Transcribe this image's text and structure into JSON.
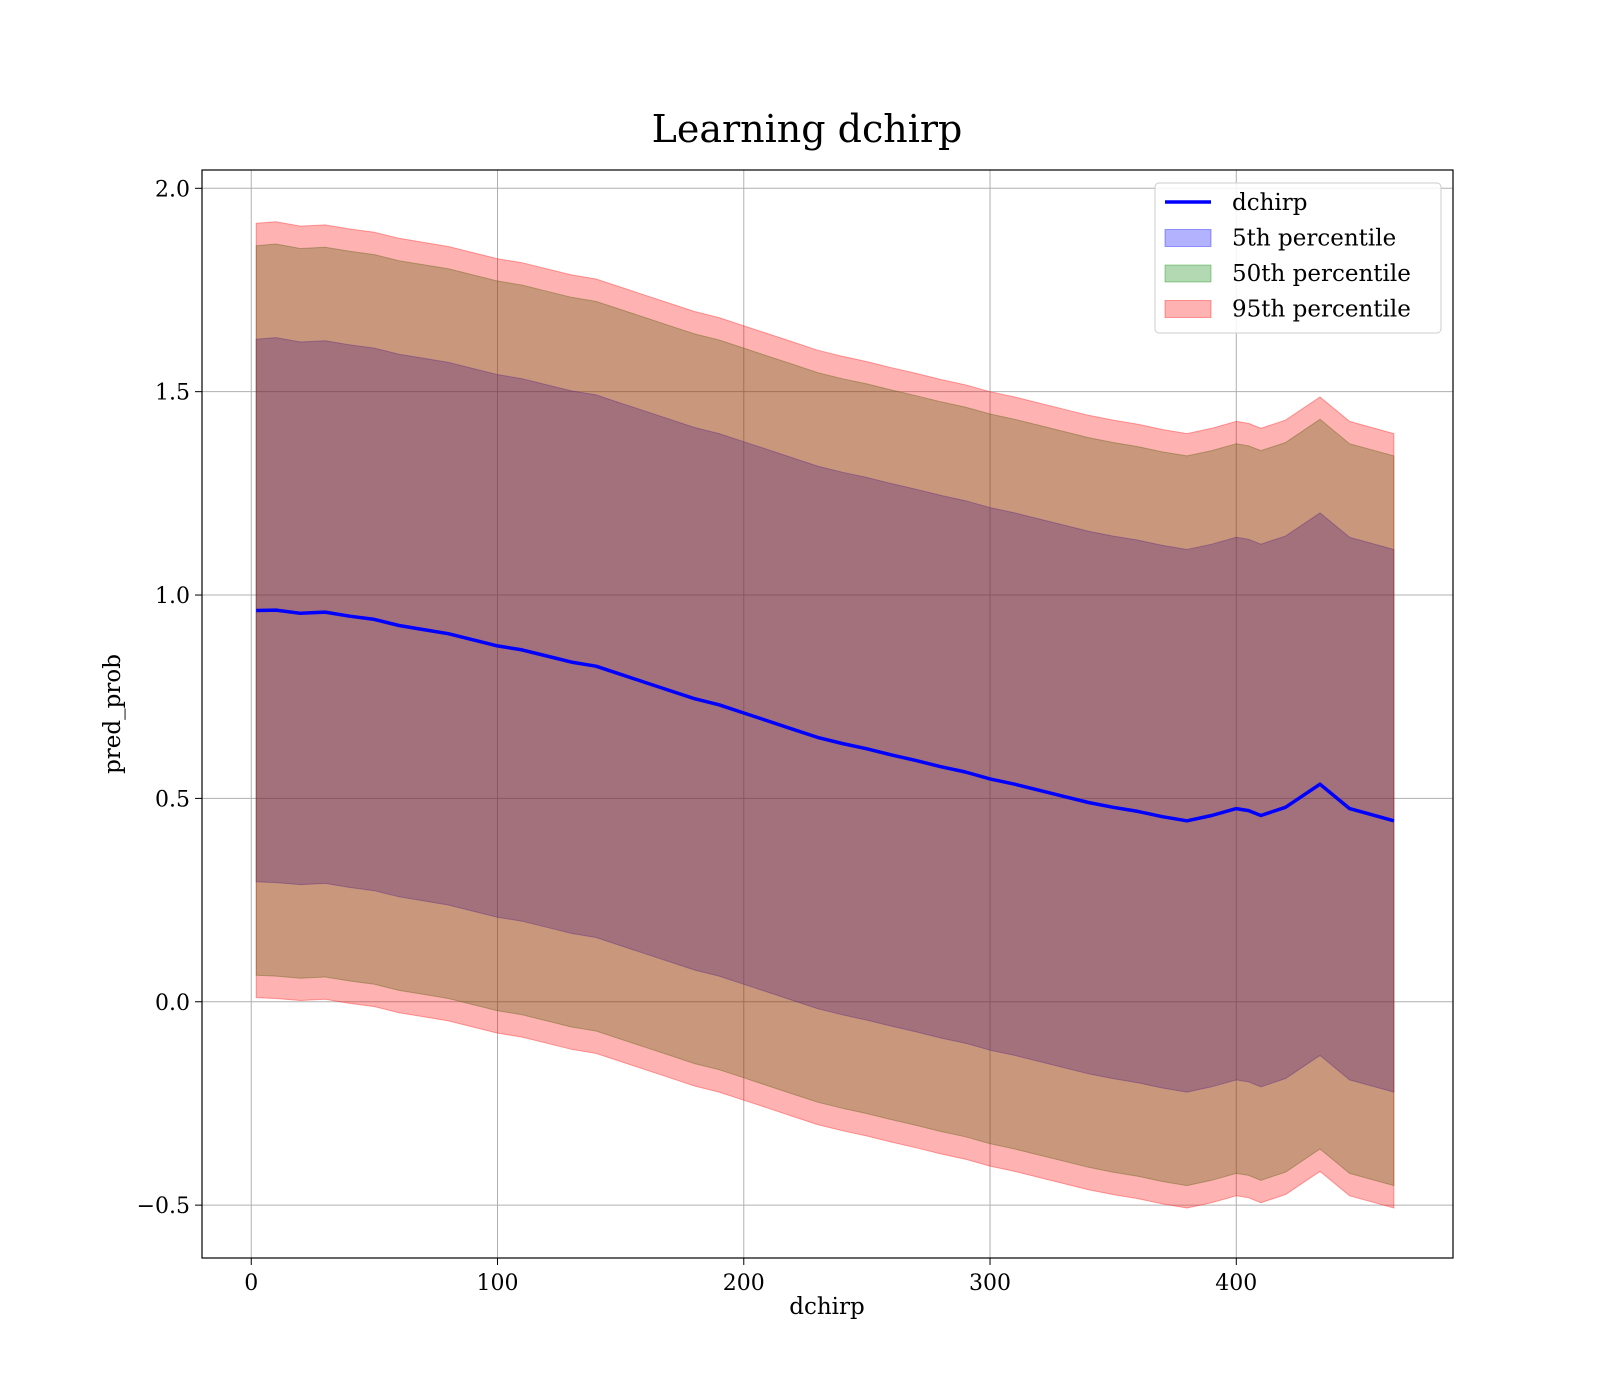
{
  "chart_data": {
    "type": "area",
    "title": "Learning dchirp",
    "xlabel": "dchirp",
    "ylabel": "pred_prob",
    "xlim": [
      -20,
      488
    ],
    "ylim": [
      -0.63,
      2.045
    ],
    "x_ticks": [
      0,
      100,
      200,
      300,
      400
    ],
    "x_tick_labels": [
      "0",
      "100",
      "200",
      "300",
      "400"
    ],
    "y_ticks": [
      -0.5,
      0.0,
      0.5,
      1.0,
      1.5,
      2.0
    ],
    "y_tick_labels": [
      "−0.5",
      "0.0",
      "0.5",
      "1.0",
      "1.5",
      "2.0"
    ],
    "grid": true,
    "legend_position": "top-right",
    "x": [
      2,
      10,
      20,
      30,
      40,
      50,
      60,
      70,
      80,
      90,
      100,
      110,
      120,
      130,
      140,
      150,
      160,
      170,
      180,
      190,
      200,
      210,
      220,
      230,
      240,
      250,
      260,
      270,
      280,
      290,
      300,
      310,
      320,
      330,
      340,
      350,
      360,
      370,
      380,
      390,
      400,
      405,
      410,
      415,
      420,
      434,
      446,
      464
    ],
    "series": [
      {
        "name": "dchirp",
        "kind": "line",
        "color": "#0000ff",
        "values": [
          0.962,
          0.963,
          0.955,
          0.958,
          0.948,
          0.94,
          0.925,
          0.915,
          0.905,
          0.89,
          0.875,
          0.865,
          0.85,
          0.835,
          0.825,
          0.805,
          0.785,
          0.765,
          0.745,
          0.73,
          0.71,
          0.69,
          0.67,
          0.65,
          0.635,
          0.622,
          0.607,
          0.593,
          0.578,
          0.565,
          0.548,
          0.535,
          0.52,
          0.505,
          0.49,
          0.478,
          0.468,
          0.455,
          0.445,
          0.458,
          0.475,
          0.47,
          0.458,
          0.468,
          0.478,
          0.535,
          0.475,
          0.445
        ]
      },
      {
        "name": "5th percentile",
        "kind": "band",
        "color": "#0000ff",
        "lower": [
          0.295,
          0.293,
          0.288,
          0.291,
          0.281,
          0.273,
          0.258,
          0.248,
          0.238,
          0.223,
          0.208,
          0.198,
          0.183,
          0.168,
          0.158,
          0.138,
          0.118,
          0.098,
          0.078,
          0.063,
          0.043,
          0.023,
          0.003,
          -0.017,
          -0.032,
          -0.045,
          -0.06,
          -0.074,
          -0.089,
          -0.102,
          -0.119,
          -0.132,
          -0.147,
          -0.162,
          -0.177,
          -0.189,
          -0.199,
          -0.212,
          -0.222,
          -0.209,
          -0.192,
          -0.197,
          -0.209,
          -0.199,
          -0.189,
          -0.132,
          -0.192,
          -0.222
        ],
        "upper": [
          1.629,
          1.633,
          1.622,
          1.625,
          1.615,
          1.607,
          1.592,
          1.582,
          1.572,
          1.557,
          1.542,
          1.532,
          1.517,
          1.502,
          1.492,
          1.472,
          1.452,
          1.432,
          1.412,
          1.397,
          1.377,
          1.357,
          1.337,
          1.317,
          1.302,
          1.289,
          1.274,
          1.26,
          1.245,
          1.232,
          1.215,
          1.202,
          1.187,
          1.172,
          1.157,
          1.145,
          1.135,
          1.122,
          1.112,
          1.125,
          1.142,
          1.137,
          1.125,
          1.135,
          1.145,
          1.202,
          1.142,
          1.112
        ]
      },
      {
        "name": "50th percentile",
        "kind": "band",
        "color": "#008000",
        "lower": [
          0.065,
          0.063,
          0.058,
          0.061,
          0.051,
          0.043,
          0.028,
          0.018,
          0.008,
          -0.007,
          -0.022,
          -0.032,
          -0.047,
          -0.062,
          -0.072,
          -0.092,
          -0.112,
          -0.132,
          -0.152,
          -0.167,
          -0.187,
          -0.207,
          -0.227,
          -0.247,
          -0.262,
          -0.275,
          -0.29,
          -0.304,
          -0.319,
          -0.332,
          -0.349,
          -0.362,
          -0.377,
          -0.392,
          -0.407,
          -0.419,
          -0.429,
          -0.442,
          -0.452,
          -0.439,
          -0.422,
          -0.427,
          -0.439,
          -0.429,
          -0.419,
          -0.362,
          -0.422,
          -0.452
        ],
        "upper": [
          1.859,
          1.863,
          1.852,
          1.855,
          1.845,
          1.837,
          1.822,
          1.812,
          1.802,
          1.787,
          1.772,
          1.762,
          1.747,
          1.732,
          1.722,
          1.702,
          1.682,
          1.662,
          1.642,
          1.627,
          1.607,
          1.587,
          1.567,
          1.547,
          1.532,
          1.519,
          1.504,
          1.49,
          1.475,
          1.462,
          1.445,
          1.432,
          1.417,
          1.402,
          1.387,
          1.375,
          1.365,
          1.352,
          1.342,
          1.355,
          1.372,
          1.367,
          1.355,
          1.365,
          1.375,
          1.432,
          1.372,
          1.342
        ]
      },
      {
        "name": "95th percentile",
        "kind": "band",
        "color": "#ff0000",
        "lower": [
          0.01,
          0.008,
          0.003,
          0.006,
          -0.004,
          -0.012,
          -0.027,
          -0.037,
          -0.047,
          -0.062,
          -0.077,
          -0.087,
          -0.102,
          -0.117,
          -0.127,
          -0.147,
          -0.167,
          -0.187,
          -0.207,
          -0.222,
          -0.242,
          -0.262,
          -0.282,
          -0.302,
          -0.317,
          -0.33,
          -0.345,
          -0.359,
          -0.374,
          -0.387,
          -0.404,
          -0.417,
          -0.432,
          -0.447,
          -0.462,
          -0.474,
          -0.484,
          -0.497,
          -0.507,
          -0.494,
          -0.477,
          -0.482,
          -0.494,
          -0.484,
          -0.474,
          -0.417,
          -0.477,
          -0.507
        ],
        "upper": [
          1.914,
          1.918,
          1.907,
          1.91,
          1.9,
          1.892,
          1.877,
          1.867,
          1.857,
          1.842,
          1.827,
          1.817,
          1.802,
          1.787,
          1.777,
          1.757,
          1.737,
          1.717,
          1.697,
          1.682,
          1.662,
          1.642,
          1.622,
          1.602,
          1.587,
          1.574,
          1.559,
          1.545,
          1.53,
          1.517,
          1.5,
          1.487,
          1.472,
          1.457,
          1.442,
          1.43,
          1.42,
          1.407,
          1.397,
          1.41,
          1.427,
          1.422,
          1.41,
          1.42,
          1.43,
          1.487,
          1.427,
          1.397
        ]
      }
    ]
  }
}
